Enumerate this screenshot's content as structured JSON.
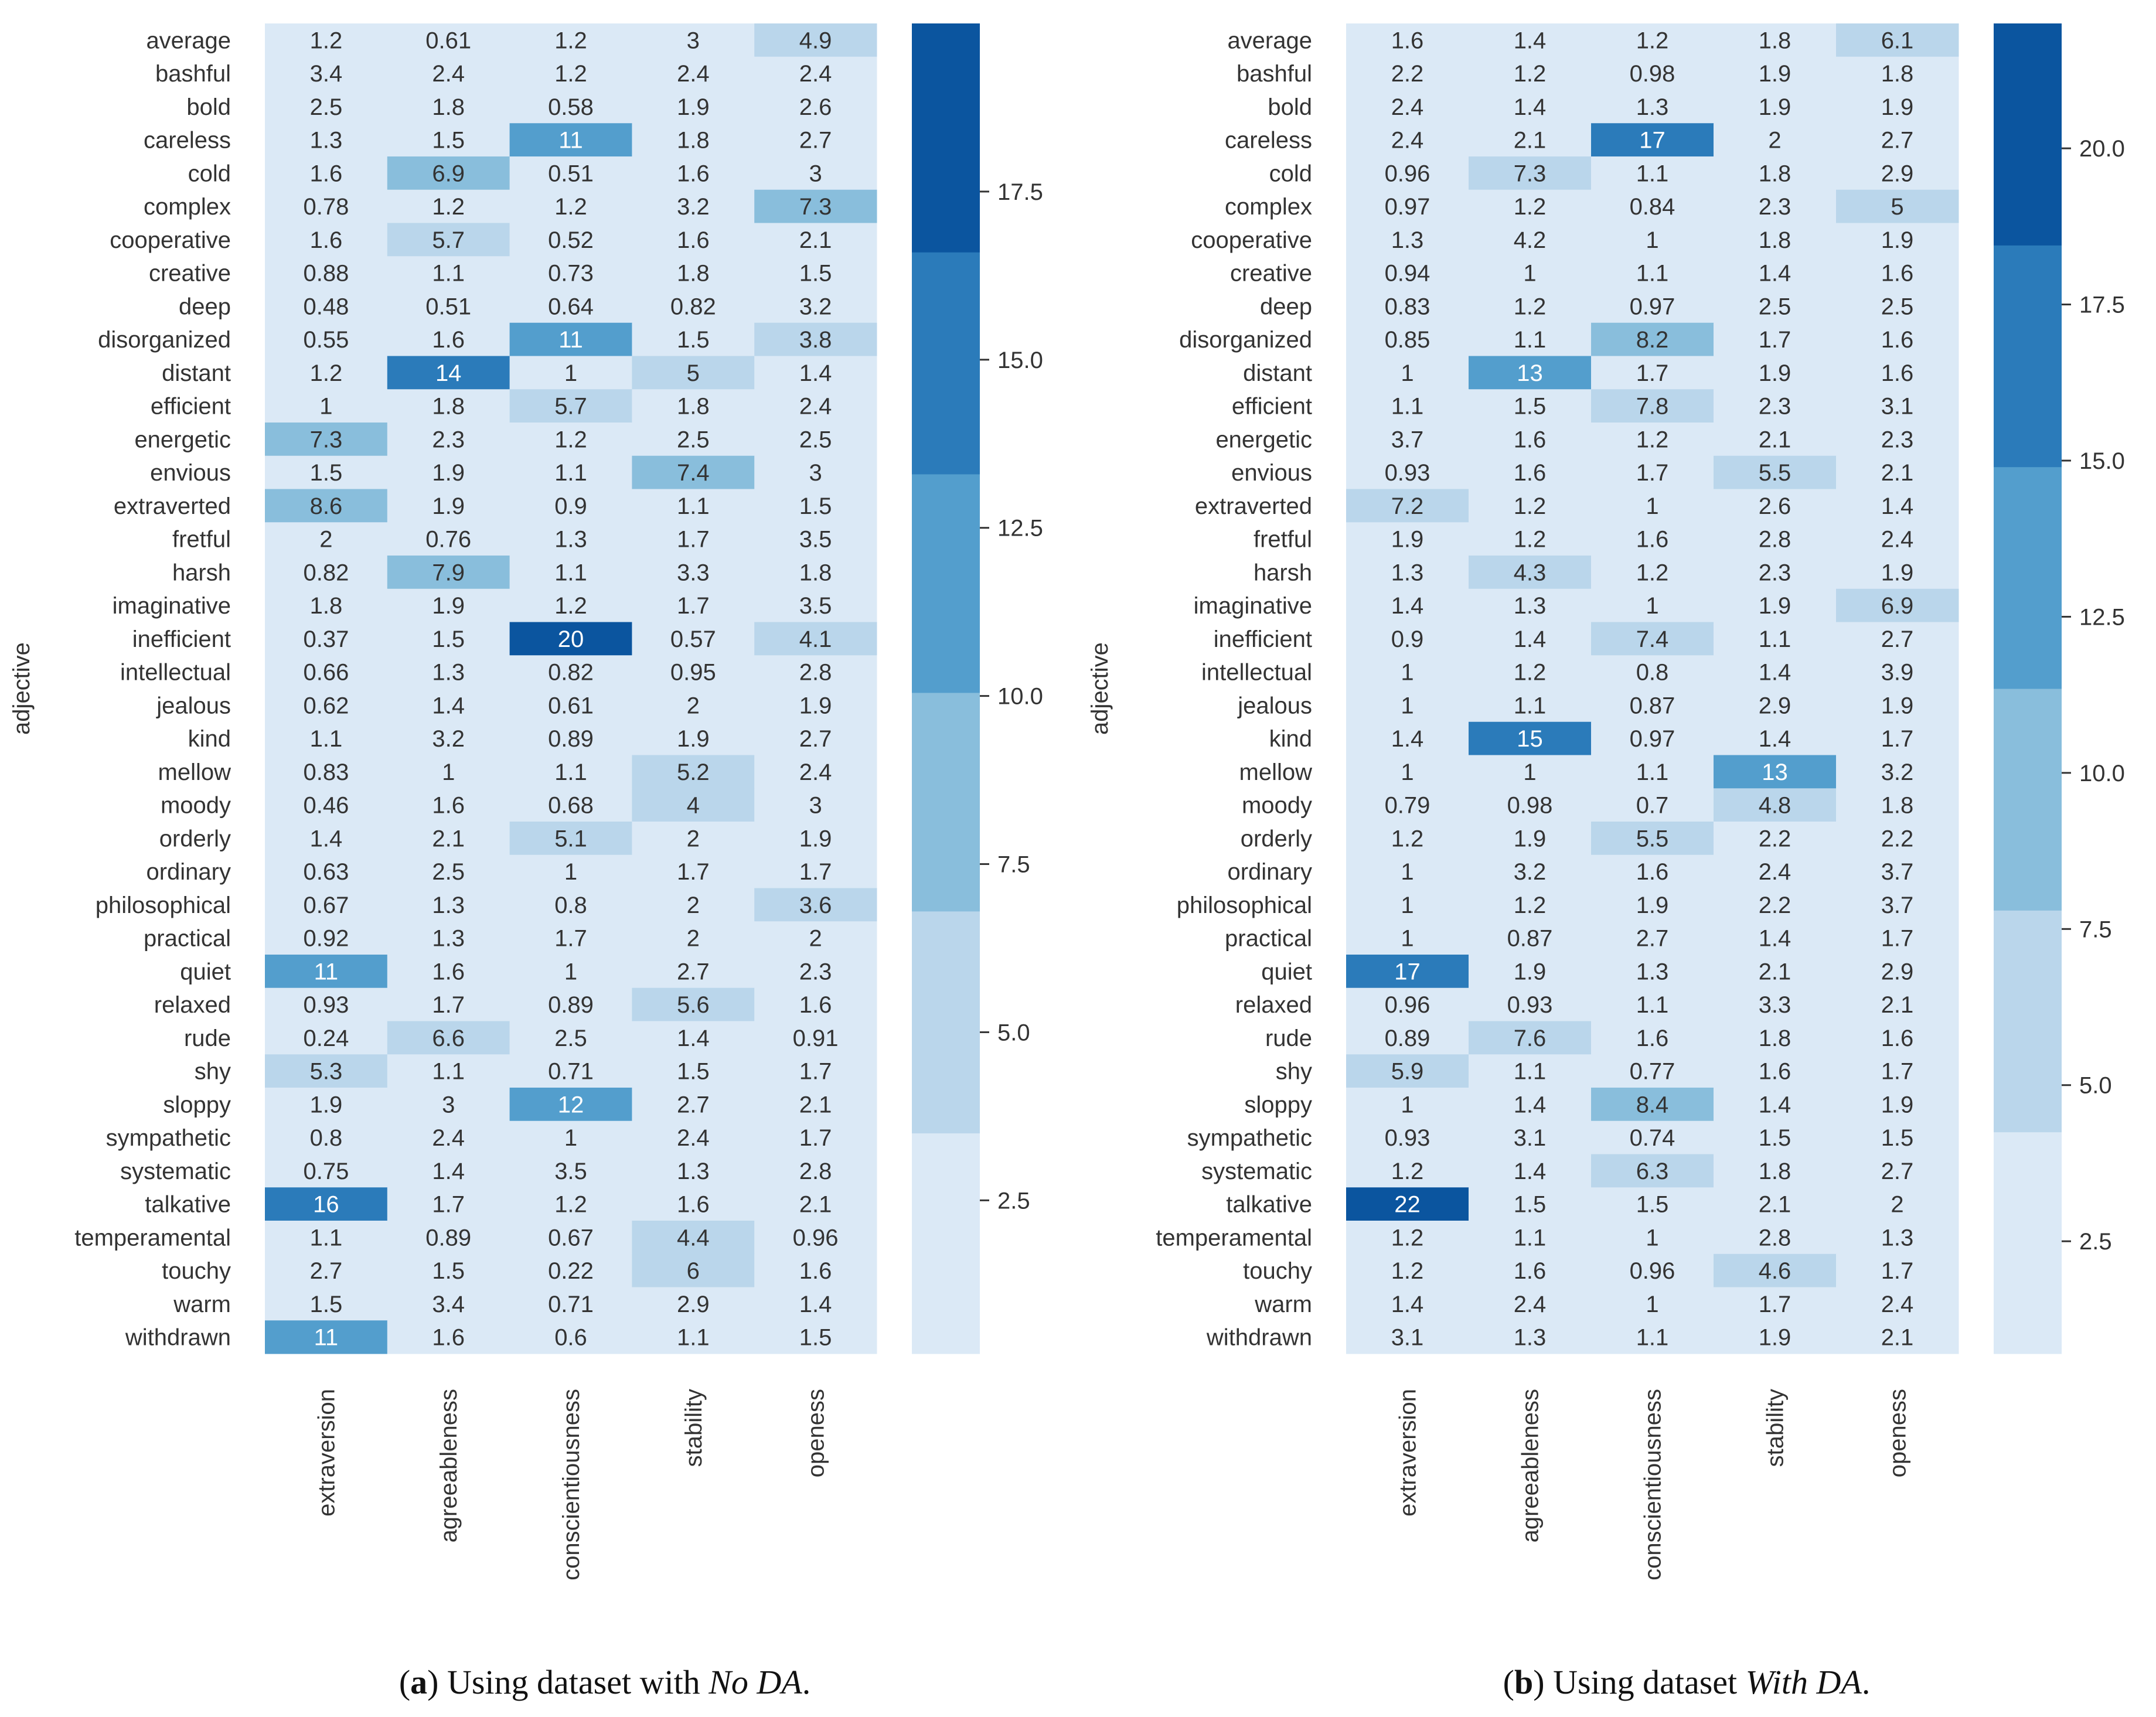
{
  "chart_data": [
    {
      "type": "heatmap",
      "panel": "a",
      "caption_label": "a",
      "caption_prefix": "Using dataset with ",
      "caption_italic": "No DA",
      "caption_suffix": ".",
      "ylabel": "adjective",
      "xlabel": "",
      "columns": [
        "extraversion",
        "agreeableness",
        "conscientiousness",
        "stability",
        "openess"
      ],
      "rows": [
        "average",
        "bashful",
        "bold",
        "careless",
        "cold",
        "complex",
        "cooperative",
        "creative",
        "deep",
        "disorganized",
        "distant",
        "efficient",
        "energetic",
        "envious",
        "extraverted",
        "fretful",
        "harsh",
        "imaginative",
        "inefficient",
        "intellectual",
        "jealous",
        "kind",
        "mellow",
        "moody",
        "orderly",
        "ordinary",
        "philosophical",
        "practical",
        "quiet",
        "relaxed",
        "rude",
        "shy",
        "sloppy",
        "sympathetic",
        "systematic",
        "talkative",
        "temperamental",
        "touchy",
        "warm",
        "withdrawn"
      ],
      "values": [
        [
          "1.2",
          "0.61",
          "1.2",
          "3",
          "4.9"
        ],
        [
          "3.4",
          "2.4",
          "1.2",
          "2.4",
          "2.4"
        ],
        [
          "2.5",
          "1.8",
          "0.58",
          "1.9",
          "2.6"
        ],
        [
          "1.3",
          "1.5",
          "11",
          "1.8",
          "2.7"
        ],
        [
          "1.6",
          "6.9",
          "0.51",
          "1.6",
          "3"
        ],
        [
          "0.78",
          "1.2",
          "1.2",
          "3.2",
          "7.3"
        ],
        [
          "1.6",
          "5.7",
          "0.52",
          "1.6",
          "2.1"
        ],
        [
          "0.88",
          "1.1",
          "0.73",
          "1.8",
          "1.5"
        ],
        [
          "0.48",
          "0.51",
          "0.64",
          "0.82",
          "3.2"
        ],
        [
          "0.55",
          "1.6",
          "11",
          "1.5",
          "3.8"
        ],
        [
          "1.2",
          "14",
          "1",
          "5",
          "1.4"
        ],
        [
          "1",
          "1.8",
          "5.7",
          "1.8",
          "2.4"
        ],
        [
          "7.3",
          "2.3",
          "1.2",
          "2.5",
          "2.5"
        ],
        [
          "1.5",
          "1.9",
          "1.1",
          "7.4",
          "3"
        ],
        [
          "8.6",
          "1.9",
          "0.9",
          "1.1",
          "1.5"
        ],
        [
          "2",
          "0.76",
          "1.3",
          "1.7",
          "3.5"
        ],
        [
          "0.82",
          "7.9",
          "1.1",
          "3.3",
          "1.8"
        ],
        [
          "1.8",
          "1.9",
          "1.2",
          "1.7",
          "3.5"
        ],
        [
          "0.37",
          "1.5",
          "20",
          "0.57",
          "4.1"
        ],
        [
          "0.66",
          "1.3",
          "0.82",
          "0.95",
          "2.8"
        ],
        [
          "0.62",
          "1.4",
          "0.61",
          "2",
          "1.9"
        ],
        [
          "1.1",
          "3.2",
          "0.89",
          "1.9",
          "2.7"
        ],
        [
          "0.83",
          "1",
          "1.1",
          "5.2",
          "2.4"
        ],
        [
          "0.46",
          "1.6",
          "0.68",
          "4",
          "3"
        ],
        [
          "1.4",
          "2.1",
          "5.1",
          "2",
          "1.9"
        ],
        [
          "0.63",
          "2.5",
          "1",
          "1.7",
          "1.7"
        ],
        [
          "0.67",
          "1.3",
          "0.8",
          "2",
          "3.6"
        ],
        [
          "0.92",
          "1.3",
          "1.7",
          "2",
          "2"
        ],
        [
          "11",
          "1.6",
          "1",
          "2.7",
          "2.3"
        ],
        [
          "0.93",
          "1.7",
          "0.89",
          "5.6",
          "1.6"
        ],
        [
          "0.24",
          "6.6",
          "2.5",
          "1.4",
          "0.91"
        ],
        [
          "5.3",
          "1.1",
          "0.71",
          "1.5",
          "1.7"
        ],
        [
          "1.9",
          "3",
          "12",
          "2.7",
          "2.1"
        ],
        [
          "0.8",
          "2.4",
          "1",
          "2.4",
          "1.7"
        ],
        [
          "0.75",
          "1.4",
          "3.5",
          "1.3",
          "2.8"
        ],
        [
          "16",
          "1.7",
          "1.2",
          "1.6",
          "2.1"
        ],
        [
          "1.1",
          "0.89",
          "0.67",
          "4.4",
          "0.96"
        ],
        [
          "2.7",
          "1.5",
          "0.22",
          "6",
          "1.6"
        ],
        [
          "1.5",
          "3.4",
          "0.71",
          "2.9",
          "1.4"
        ],
        [
          "11",
          "1.6",
          "0.6",
          "1.1",
          "1.5"
        ]
      ],
      "colorbar": {
        "range": [
          0.22,
          20
        ],
        "boundaries": [
          0.22,
          3.5,
          6.8,
          10.05,
          13.3,
          16.6,
          20
        ],
        "ticks": [
          2.5,
          5.0,
          7.5,
          10.0,
          12.5,
          15.0,
          17.5
        ],
        "tick_labels": [
          "2.5",
          "5.0",
          "7.5",
          "10.0",
          "12.5",
          "15.0",
          "17.5"
        ]
      }
    },
    {
      "type": "heatmap",
      "panel": "b",
      "caption_label": "b",
      "caption_prefix": "Using dataset ",
      "caption_italic": "With DA",
      "caption_suffix": ".",
      "ylabel": "adjective",
      "xlabel": "",
      "columns": [
        "extraversion",
        "agreeableness",
        "conscientiousness",
        "stability",
        "openess"
      ],
      "rows": [
        "average",
        "bashful",
        "bold",
        "careless",
        "cold",
        "complex",
        "cooperative",
        "creative",
        "deep",
        "disorganized",
        "distant",
        "efficient",
        "energetic",
        "envious",
        "extraverted",
        "fretful",
        "harsh",
        "imaginative",
        "inefficient",
        "intellectual",
        "jealous",
        "kind",
        "mellow",
        "moody",
        "orderly",
        "ordinary",
        "philosophical",
        "practical",
        "quiet",
        "relaxed",
        "rude",
        "shy",
        "sloppy",
        "sympathetic",
        "systematic",
        "talkative",
        "temperamental",
        "touchy",
        "warm",
        "withdrawn"
      ],
      "values": [
        [
          "1.6",
          "1.4",
          "1.2",
          "1.8",
          "6.1"
        ],
        [
          "2.2",
          "1.2",
          "0.98",
          "1.9",
          "1.8"
        ],
        [
          "2.4",
          "1.4",
          "1.3",
          "1.9",
          "1.9"
        ],
        [
          "2.4",
          "2.1",
          "17",
          "2",
          "2.7"
        ],
        [
          "0.96",
          "7.3",
          "1.1",
          "1.8",
          "2.9"
        ],
        [
          "0.97",
          "1.2",
          "0.84",
          "2.3",
          "5"
        ],
        [
          "1.3",
          "4.2",
          "1",
          "1.8",
          "1.9"
        ],
        [
          "0.94",
          "1",
          "1.1",
          "1.4",
          "1.6"
        ],
        [
          "0.83",
          "1.2",
          "0.97",
          "2.5",
          "2.5"
        ],
        [
          "0.85",
          "1.1",
          "8.2",
          "1.7",
          "1.6"
        ],
        [
          "1",
          "13",
          "1.7",
          "1.9",
          "1.6"
        ],
        [
          "1.1",
          "1.5",
          "7.8",
          "2.3",
          "3.1"
        ],
        [
          "3.7",
          "1.6",
          "1.2",
          "2.1",
          "2.3"
        ],
        [
          "0.93",
          "1.6",
          "1.7",
          "5.5",
          "2.1"
        ],
        [
          "7.2",
          "1.2",
          "1",
          "2.6",
          "1.4"
        ],
        [
          "1.9",
          "1.2",
          "1.6",
          "2.8",
          "2.4"
        ],
        [
          "1.3",
          "4.3",
          "1.2",
          "2.3",
          "1.9"
        ],
        [
          "1.4",
          "1.3",
          "1",
          "1.9",
          "6.9"
        ],
        [
          "0.9",
          "1.4",
          "7.4",
          "1.1",
          "2.7"
        ],
        [
          "1",
          "1.2",
          "0.8",
          "1.4",
          "3.9"
        ],
        [
          "1",
          "1.1",
          "0.87",
          "2.9",
          "1.9"
        ],
        [
          "1.4",
          "15",
          "0.97",
          "1.4",
          "1.7"
        ],
        [
          "1",
          "1",
          "1.1",
          "13",
          "3.2"
        ],
        [
          "0.79",
          "0.98",
          "0.7",
          "4.8",
          "1.8"
        ],
        [
          "1.2",
          "1.9",
          "5.5",
          "2.2",
          "2.2"
        ],
        [
          "1",
          "3.2",
          "1.6",
          "2.4",
          "3.7"
        ],
        [
          "1",
          "1.2",
          "1.9",
          "2.2",
          "3.7"
        ],
        [
          "1",
          "0.87",
          "2.7",
          "1.4",
          "1.7"
        ],
        [
          "17",
          "1.9",
          "1.3",
          "2.1",
          "2.9"
        ],
        [
          "0.96",
          "0.93",
          "1.1",
          "3.3",
          "2.1"
        ],
        [
          "0.89",
          "7.6",
          "1.6",
          "1.8",
          "1.6"
        ],
        [
          "5.9",
          "1.1",
          "0.77",
          "1.6",
          "1.7"
        ],
        [
          "1",
          "1.4",
          "8.4",
          "1.4",
          "1.9"
        ],
        [
          "0.93",
          "3.1",
          "0.74",
          "1.5",
          "1.5"
        ],
        [
          "1.2",
          "1.4",
          "6.3",
          "1.8",
          "2.7"
        ],
        [
          "22",
          "1.5",
          "1.5",
          "2.1",
          "2"
        ],
        [
          "1.2",
          "1.1",
          "1",
          "2.8",
          "1.3"
        ],
        [
          "1.2",
          "1.6",
          "0.96",
          "4.6",
          "1.7"
        ],
        [
          "1.4",
          "2.4",
          "1",
          "1.7",
          "2.4"
        ],
        [
          "3.1",
          "1.3",
          "1.1",
          "1.9",
          "2.1"
        ]
      ],
      "colorbar": {
        "range": [
          0.7,
          22
        ],
        "boundaries": [
          0.7,
          4.25,
          7.8,
          11.35,
          14.9,
          18.45,
          22
        ],
        "ticks": [
          2.5,
          5.0,
          7.5,
          10.0,
          12.5,
          15.0,
          17.5,
          20.0
        ],
        "tick_labels": [
          "2.5",
          "5.0",
          "7.5",
          "10.0",
          "12.5",
          "15.0",
          "17.5",
          "20.0"
        ]
      }
    }
  ],
  "palette": [
    "#dbe9f6",
    "#bad6eb",
    "#89bedc",
    "#539ecd",
    "#2b7bba",
    "#0b559f"
  ],
  "text_dark": "#333333",
  "text_light": "#ffffff"
}
